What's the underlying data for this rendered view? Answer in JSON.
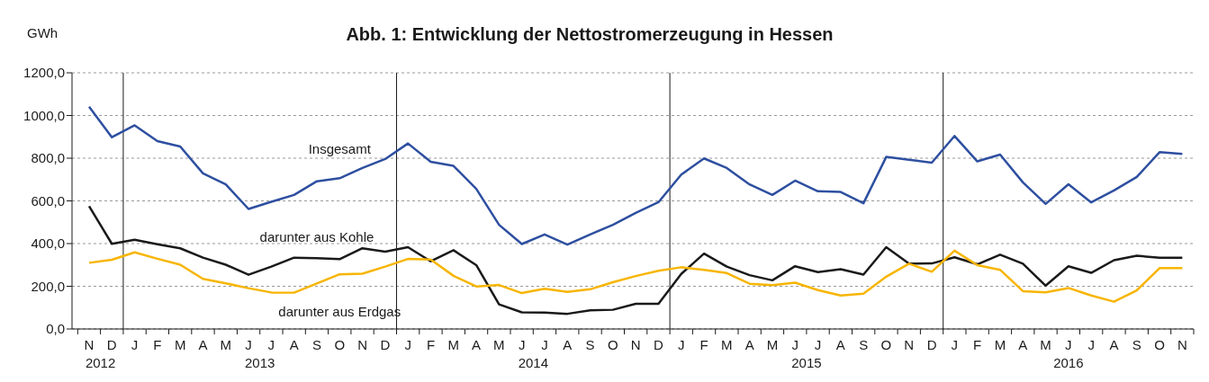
{
  "chart_data": {
    "type": "line",
    "title": "Abb. 1: Entwicklung der Nettostromerzeugung in Hessen",
    "ylabel": "GWh",
    "categories": [
      "N",
      "D",
      "J",
      "F",
      "M",
      "A",
      "M",
      "J",
      "J",
      "A",
      "S",
      "O",
      "N",
      "D",
      "J",
      "F",
      "M",
      "A",
      "M",
      "J",
      "J",
      "A",
      "S",
      "O",
      "N",
      "D",
      "J",
      "F",
      "M",
      "A",
      "M",
      "J",
      "J",
      "A",
      "S",
      "O",
      "N",
      "D",
      "J",
      "F",
      "M",
      "A",
      "M",
      "J",
      "J",
      "A",
      "S",
      "O",
      "N"
    ],
    "series": [
      {
        "name": "Insgesamt",
        "color": "#2e4fa0",
        "values": [
          1041,
          898,
          954,
          880,
          855,
          729,
          677,
          562,
          596,
          628,
          692,
          706,
          754,
          796,
          869,
          783,
          764,
          656,
          488,
          398,
          443,
          395,
          443,
          488,
          544,
          594,
          723,
          799,
          754,
          677,
          628,
          695,
          645,
          642,
          589,
          806,
          793,
          779,
          904,
          785,
          817,
          687,
          586,
          678,
          593,
          649,
          712,
          828,
          820
        ]
      },
      {
        "name": "darunter aus Kohle",
        "color": "#1a1a1a",
        "values": [
          575,
          399,
          418,
          397,
          378,
          334,
          301,
          254,
          292,
          334,
          332,
          327,
          378,
          362,
          383,
          317,
          369,
          299,
          115,
          78,
          77,
          71,
          87,
          90,
          118,
          118,
          258,
          353,
          292,
          252,
          228,
          294,
          266,
          280,
          255,
          383,
          306,
          307,
          336,
          303,
          348,
          306,
          203,
          294,
          263,
          322,
          343,
          334,
          334
        ]
      },
      {
        "name": "darunter aus Erdgas",
        "color": "#f7b500",
        "values": [
          310,
          324,
          359,
          329,
          301,
          235,
          214,
          191,
          171,
          170,
          213,
          256,
          259,
          292,
          328,
          325,
          249,
          199,
          206,
          168,
          188,
          174,
          186,
          219,
          248,
          273,
          289,
          277,
          262,
          212,
          205,
          217,
          182,
          157,
          165,
          245,
          306,
          268,
          367,
          299,
          277,
          177,
          172,
          192,
          157,
          128,
          181,
          285,
          285
        ]
      }
    ],
    "ylim": [
      0,
      1200
    ],
    "yticks": [
      {
        "value": 0,
        "label": "0,0"
      },
      {
        "value": 200,
        "label": "200,0"
      },
      {
        "value": 400,
        "label": "400,0"
      },
      {
        "value": 600,
        "label": "600,0"
      },
      {
        "value": 800,
        "label": "800,0"
      },
      {
        "value": 1000,
        "label": "1000,0"
      },
      {
        "value": 1200,
        "label": "1200,0"
      }
    ],
    "grid": "y",
    "marker": "none",
    "line_style": "solid",
    "annotations": [
      "2012",
      "2013",
      "2014",
      "2015",
      "2016"
    ]
  }
}
